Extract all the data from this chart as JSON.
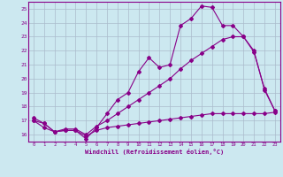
{
  "xlabel": "Windchill (Refroidissement éolien,°C)",
  "background_color": "#cce8f0",
  "grid_color": "#aabbcc",
  "line_color": "#880088",
  "xlim": [
    -0.5,
    23.5
  ],
  "ylim": [
    15.5,
    25.5
  ],
  "yticks": [
    16,
    17,
    18,
    19,
    20,
    21,
    22,
    23,
    24,
    25
  ],
  "xticks": [
    0,
    1,
    2,
    3,
    4,
    5,
    6,
    7,
    8,
    9,
    10,
    11,
    12,
    13,
    14,
    15,
    16,
    17,
    18,
    19,
    20,
    21,
    22,
    23
  ],
  "line1_x": [
    0,
    1,
    2,
    3,
    4,
    5,
    6,
    7,
    8,
    9,
    10,
    11,
    12,
    13,
    14,
    15,
    16,
    17,
    18,
    19,
    20,
    21,
    22,
    23
  ],
  "line1_y": [
    17.2,
    16.8,
    16.2,
    16.3,
    16.3,
    15.7,
    16.5,
    17.5,
    18.5,
    19.0,
    20.5,
    21.5,
    20.8,
    21.0,
    23.8,
    24.3,
    25.2,
    25.1,
    23.8,
    23.8,
    23.0,
    21.9,
    19.3,
    17.7
  ],
  "line2_x": [
    0,
    1,
    2,
    3,
    4,
    5,
    6,
    7,
    8,
    9,
    10,
    11,
    12,
    13,
    14,
    15,
    16,
    17,
    18,
    19,
    20,
    21,
    22,
    23
  ],
  "line2_y": [
    17.0,
    16.5,
    16.2,
    16.4,
    16.4,
    16.0,
    16.6,
    17.0,
    17.5,
    18.0,
    18.5,
    19.0,
    19.5,
    20.0,
    20.7,
    21.3,
    21.8,
    22.3,
    22.8,
    23.0,
    23.0,
    22.0,
    19.2,
    17.7
  ],
  "line3_x": [
    0,
    1,
    2,
    3,
    4,
    5,
    6,
    7,
    8,
    9,
    10,
    11,
    12,
    13,
    14,
    15,
    16,
    17,
    18,
    19,
    20,
    21,
    22,
    23
  ],
  "line3_y": [
    17.0,
    16.8,
    16.2,
    16.3,
    16.3,
    15.9,
    16.3,
    16.5,
    16.6,
    16.7,
    16.8,
    16.9,
    17.0,
    17.1,
    17.2,
    17.3,
    17.4,
    17.5,
    17.5,
    17.5,
    17.5,
    17.5,
    17.5,
    17.6
  ]
}
